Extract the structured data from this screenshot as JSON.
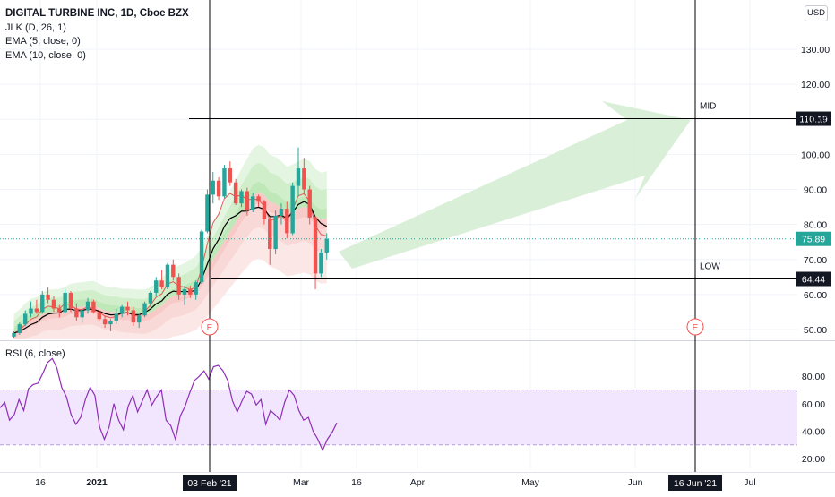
{
  "header": {
    "symbol_line": "DIGITAL TURBINE INC, 1D, Cboe BZX",
    "indicators": [
      "JLK (D, 26, 1)",
      "EMA (5, close, 0)",
      "EMA (10, close, 0)"
    ],
    "currency": "USD"
  },
  "rsi": {
    "title": "RSI (6, close)"
  },
  "chart_data": [
    {
      "type": "candlestick",
      "title": "DIGITAL TURBINE INC, 1D, Cboe BZX",
      "ylim": [
        46,
        140
      ],
      "y_ticks": [
        50,
        60,
        70,
        80,
        90,
        100,
        110,
        120,
        130
      ],
      "y_tick_labels": [
        "50.00",
        "60.00",
        "70.00",
        "80.00",
        "90.00",
        "100.00",
        "110.00",
        "120.00",
        "130.00"
      ],
      "x_ticks": [
        "16",
        "2021",
        "Mar",
        "16",
        "Apr",
        "May",
        "Jun",
        "Jul"
      ],
      "ohlc": [
        [
          48.0,
          49.5,
          47.5,
          49.0
        ],
        [
          49.0,
          52.0,
          48.5,
          51.5
        ],
        [
          51.5,
          55.5,
          51.0,
          54.5
        ],
        [
          54.5,
          58.0,
          53.5,
          56.0
        ],
        [
          56.0,
          58.5,
          54.5,
          55.0
        ],
        [
          55.0,
          61.0,
          54.5,
          60.0
        ],
        [
          60.0,
          62.0,
          57.5,
          58.5
        ],
        [
          58.5,
          59.5,
          55.0,
          56.0
        ],
        [
          56.0,
          57.0,
          53.5,
          55.0
        ],
        [
          55.0,
          61.5,
          54.5,
          60.5
        ],
        [
          60.5,
          61.0,
          55.0,
          56.0
        ],
        [
          56.0,
          57.5,
          52.5,
          53.5
        ],
        [
          53.5,
          56.0,
          52.0,
          55.5
        ],
        [
          55.5,
          59.0,
          54.5,
          58.0
        ],
        [
          58.0,
          58.5,
          54.5,
          55.0
        ],
        [
          55.0,
          55.5,
          52.5,
          53.0
        ],
        [
          53.0,
          54.0,
          50.5,
          51.5
        ],
        [
          51.5,
          53.0,
          49.5,
          52.5
        ],
        [
          52.5,
          56.0,
          51.5,
          54.5
        ],
        [
          54.5,
          57.0,
          53.5,
          56.5
        ],
        [
          56.5,
          58.0,
          54.0,
          55.5
        ],
        [
          55.5,
          56.5,
          51.0,
          52.0
        ],
        [
          52.0,
          54.5,
          50.5,
          54.0
        ],
        [
          54.0,
          58.0,
          53.5,
          57.5
        ],
        [
          57.5,
          61.0,
          56.5,
          60.5
        ],
        [
          60.5,
          65.0,
          59.5,
          64.0
        ],
        [
          64.0,
          67.0,
          61.5,
          62.0
        ],
        [
          62.0,
          69.0,
          61.5,
          68.5
        ],
        [
          68.5,
          70.0,
          64.0,
          65.0
        ],
        [
          65.0,
          66.0,
          58.5,
          60.0
        ],
        [
          60.0,
          62.5,
          57.0,
          61.5
        ],
        [
          61.5,
          62.5,
          59.0,
          60.0
        ],
        [
          60.0,
          64.0,
          58.5,
          63.5
        ],
        [
          63.5,
          78.5,
          63.0,
          78.0
        ],
        [
          78.0,
          90.0,
          77.5,
          88.5
        ],
        [
          88.5,
          95.0,
          86.0,
          92.5
        ],
        [
          92.5,
          93.5,
          87.0,
          88.0
        ],
        [
          88.0,
          97.0,
          87.5,
          96.0
        ],
        [
          96.0,
          98.0,
          91.0,
          92.0
        ],
        [
          92.0,
          93.0,
          85.5,
          86.0
        ],
        [
          86.0,
          90.0,
          85.0,
          89.5
        ],
        [
          89.5,
          90.5,
          82.5,
          84.0
        ],
        [
          84.0,
          89.0,
          83.5,
          88.0
        ],
        [
          88.0,
          88.5,
          85.0,
          86.5
        ],
        [
          86.5,
          87.0,
          80.0,
          81.5
        ],
        [
          81.5,
          82.0,
          68.5,
          73.0
        ],
        [
          73.0,
          84.0,
          71.5,
          82.5
        ],
        [
          82.5,
          86.0,
          80.0,
          84.5
        ],
        [
          84.5,
          86.5,
          76.0,
          77.5
        ],
        [
          77.5,
          92.0,
          77.0,
          91.0
        ],
        [
          91.0,
          102.0,
          88.0,
          96.0
        ],
        [
          96.0,
          99.0,
          88.5,
          90.0
        ],
        [
          90.0,
          91.0,
          80.0,
          82.0
        ],
        [
          82.0,
          82.5,
          61.5,
          66.0
        ],
        [
          66.0,
          73.0,
          65.0,
          72.0
        ],
        [
          72.0,
          77.5,
          70.0,
          75.89
        ]
      ],
      "price_lines": [
        {
          "label": "MID",
          "value": 110.19
        },
        {
          "label": "LOW",
          "value": 64.44
        }
      ],
      "last_price": 75.89,
      "crosshair_dates": [
        "03 Feb '21",
        "16 Jun '21"
      ],
      "earnings_markers": [
        "E",
        "E"
      ]
    },
    {
      "type": "line",
      "title": "RSI (6, close)",
      "ylim": [
        18,
        96
      ],
      "y_ticks": [
        20,
        40,
        60,
        80
      ],
      "y_tick_labels": [
        "20.00",
        "40.00",
        "60.00",
        "80.00"
      ],
      "band": [
        30,
        70
      ],
      "values": [
        57,
        61,
        48,
        52,
        63,
        55,
        71,
        74,
        75,
        82,
        90,
        93,
        86,
        72,
        65,
        52,
        45,
        50,
        63,
        72,
        66,
        43,
        34,
        43,
        60,
        48,
        41,
        58,
        66,
        54,
        62,
        70,
        59,
        65,
        70,
        48,
        44,
        34,
        51,
        58,
        68,
        77,
        80,
        84,
        78,
        87,
        88,
        84,
        77,
        62,
        54,
        62,
        69,
        67,
        59,
        63,
        45,
        55,
        52,
        48,
        61,
        70,
        66,
        55,
        48,
        50,
        40,
        34,
        26,
        34,
        39,
        46
      ]
    }
  ]
}
